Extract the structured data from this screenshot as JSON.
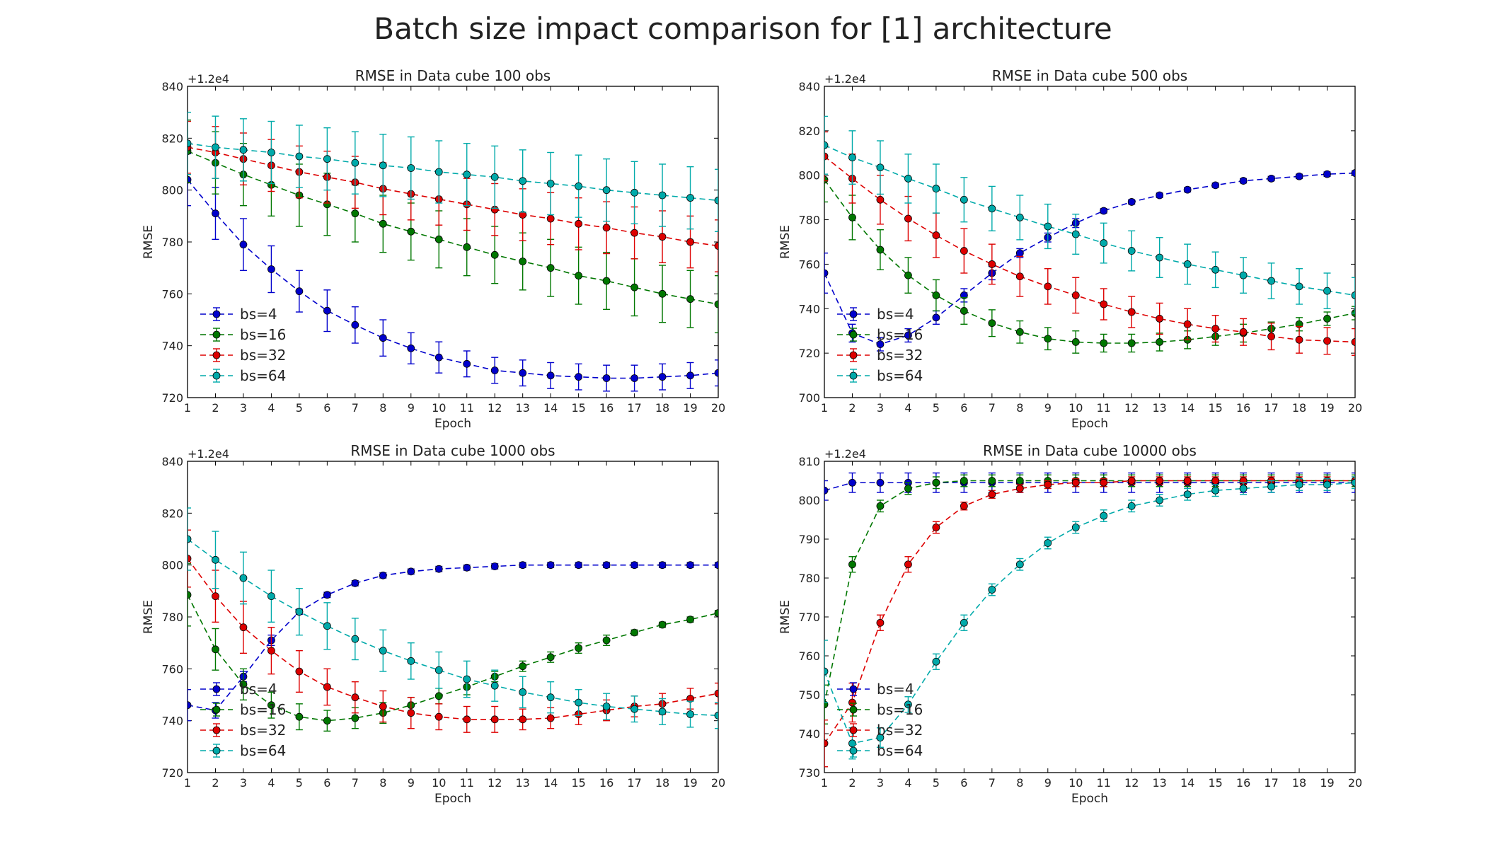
{
  "figure": {
    "title": "Batch size impact comparison for [1] architecture"
  },
  "chart_data": [
    {
      "type": "line",
      "title": "RMSE in Data cube 100 obs",
      "xlabel": "Epoch",
      "ylabel": "RMSE",
      "offset_text": "+1.2e4",
      "x": [
        1,
        2,
        3,
        4,
        5,
        6,
        7,
        8,
        9,
        10,
        11,
        12,
        13,
        14,
        15,
        16,
        17,
        18,
        19,
        20
      ],
      "xlim": [
        1,
        20
      ],
      "ylim": [
        720,
        840
      ],
      "yticks": [
        720,
        740,
        760,
        780,
        800,
        820,
        840
      ],
      "legend_position": "lower-left",
      "series": [
        {
          "name": "bs=4",
          "color": "#0000cc",
          "values": [
            804,
            791,
            779,
            769.5,
            761,
            753.5,
            748,
            743,
            739,
            735.5,
            733,
            730.5,
            729.5,
            728.5,
            728,
            727.5,
            727.5,
            728,
            728.5,
            729.5
          ],
          "errors": [
            10,
            10,
            10,
            9,
            8,
            8,
            7,
            7,
            6,
            6,
            5,
            5,
            5,
            5,
            5,
            5,
            5,
            5,
            5,
            5
          ]
        },
        {
          "name": "bs=16",
          "color": "#007700",
          "values": [
            815,
            810.5,
            806,
            802,
            798,
            794.5,
            791,
            787,
            784,
            781,
            778,
            775,
            772.5,
            770,
            767,
            765,
            762.5,
            760,
            758,
            756
          ],
          "errors": [
            12,
            12,
            12,
            12,
            12,
            12,
            11,
            11,
            11,
            11,
            11,
            11,
            11,
            11,
            11,
            11,
            11,
            11,
            11,
            11
          ]
        },
        {
          "name": "bs=32",
          "color": "#dd0000",
          "values": [
            816.5,
            814.5,
            812,
            809.5,
            807,
            805,
            803,
            800.5,
            798.5,
            796.5,
            794.5,
            792.5,
            790.5,
            789,
            787,
            785.5,
            783.5,
            782,
            780,
            778.5
          ],
          "errors": [
            10,
            10,
            10,
            10,
            10,
            10,
            10,
            10,
            10,
            10,
            10,
            10,
            10,
            10,
            10,
            10,
            10,
            10,
            10,
            10
          ]
        },
        {
          "name": "bs=64",
          "color": "#00aaaa",
          "values": [
            818,
            816.5,
            815.5,
            814.5,
            813,
            812,
            810.5,
            809.5,
            808.5,
            807,
            806,
            805,
            803.5,
            802.5,
            801.5,
            800,
            799,
            798,
            797,
            796
          ],
          "errors": [
            12,
            12,
            12,
            12,
            12,
            12,
            12,
            12,
            12,
            12,
            12,
            12,
            12,
            12,
            12,
            12,
            12,
            12,
            12,
            12
          ]
        }
      ]
    },
    {
      "type": "line",
      "title": "RMSE in Data cube 500 obs",
      "xlabel": "Epoch",
      "ylabel": "RMSE",
      "offset_text": "+1.2e4",
      "x": [
        1,
        2,
        3,
        4,
        5,
        6,
        7,
        8,
        9,
        10,
        11,
        12,
        13,
        14,
        15,
        16,
        17,
        18,
        19,
        20
      ],
      "xlim": [
        1,
        20
      ],
      "ylim": [
        700,
        840
      ],
      "yticks": [
        700,
        720,
        740,
        760,
        780,
        800,
        820,
        840
      ],
      "legend_position": "lower-left",
      "series": [
        {
          "name": "bs=4",
          "color": "#0000cc",
          "values": [
            756,
            729,
            724,
            728,
            736,
            746,
            756,
            765,
            772,
            778.5,
            784,
            788,
            791,
            793.5,
            795.5,
            797.5,
            798.5,
            799.5,
            800.5,
            801
          ],
          "errors": [
            9,
            4,
            3,
            3,
            3,
            3,
            3,
            2,
            2,
            2,
            1,
            1,
            1,
            1,
            1,
            1,
            1,
            1,
            1,
            1
          ]
        },
        {
          "name": "bs=16",
          "color": "#007700",
          "values": [
            798,
            781,
            766.5,
            755,
            746,
            739,
            733.5,
            729.5,
            726.5,
            725,
            724.5,
            724.5,
            725,
            726,
            727.5,
            729,
            731,
            733,
            735.5,
            738
          ],
          "errors": [
            10,
            10,
            9,
            8,
            7,
            6,
            6,
            5,
            5,
            5,
            4,
            4,
            4,
            4,
            4,
            4,
            3,
            3,
            3,
            3
          ]
        },
        {
          "name": "bs=32",
          "color": "#dd0000",
          "values": [
            808.5,
            798.5,
            789,
            780.5,
            773,
            766,
            760,
            754.5,
            750,
            746,
            742,
            738.5,
            735.5,
            733,
            731,
            729.5,
            727.5,
            726,
            725.5,
            725
          ],
          "errors": [
            11,
            11,
            11,
            10,
            10,
            10,
            9,
            9,
            8,
            8,
            7,
            7,
            7,
            7,
            6,
            6,
            6,
            6,
            6,
            6
          ]
        },
        {
          "name": "bs=64",
          "color": "#00aaaa",
          "values": [
            813.5,
            808,
            803.5,
            798.5,
            794,
            789,
            785,
            781,
            777,
            773.5,
            769.5,
            766,
            763,
            760,
            757.5,
            755,
            752.5,
            750,
            748,
            746
          ],
          "errors": [
            13,
            12,
            12,
            11,
            11,
            10,
            10,
            10,
            10,
            9,
            9,
            9,
            9,
            9,
            8,
            8,
            8,
            8,
            8,
            8
          ]
        }
      ]
    },
    {
      "type": "line",
      "title": "RMSE in Data cube 1000 obs",
      "xlabel": "Epoch",
      "ylabel": "RMSE",
      "offset_text": "+1.2e4",
      "x": [
        1,
        2,
        3,
        4,
        5,
        6,
        7,
        8,
        9,
        10,
        11,
        12,
        13,
        14,
        15,
        16,
        17,
        18,
        19,
        20
      ],
      "xlim": [
        1,
        20
      ],
      "ylim": [
        720,
        840
      ],
      "yticks": [
        720,
        740,
        760,
        780,
        800,
        820,
        840
      ],
      "legend_position": "lower-left",
      "series": [
        {
          "name": "bs=4",
          "color": "#0000cc",
          "values": [
            746,
            744,
            757,
            771,
            782,
            788.5,
            793,
            796,
            797.5,
            798.5,
            799,
            799.5,
            800,
            800,
            800,
            800,
            800,
            800,
            800,
            800
          ],
          "errors": [
            6,
            3,
            2,
            2,
            1,
            1,
            1,
            1,
            1,
            1,
            1,
            1,
            1,
            1,
            1,
            1,
            1,
            1,
            1,
            1
          ]
        },
        {
          "name": "bs=16",
          "color": "#007700",
          "values": [
            788.5,
            767.5,
            754,
            746,
            741.5,
            740,
            741,
            743,
            746,
            749.5,
            753,
            757,
            761,
            764.5,
            768,
            771,
            774,
            777,
            779,
            781.5
          ],
          "errors": [
            12,
            8,
            6,
            5,
            5,
            4,
            4,
            4,
            3,
            3,
            3,
            2,
            2,
            2,
            2,
            2,
            1,
            1,
            1,
            1
          ]
        },
        {
          "name": "bs=32",
          "color": "#dd0000",
          "values": [
            802.5,
            788,
            776,
            767,
            759,
            753,
            749,
            745.5,
            743,
            741.5,
            740.5,
            740.5,
            740.5,
            741,
            742.5,
            744,
            745.5,
            746.5,
            748.5,
            750.5
          ],
          "errors": [
            11,
            10,
            10,
            9,
            8,
            7,
            6,
            6,
            6,
            5,
            5,
            5,
            4,
            4,
            4,
            4,
            4,
            4,
            4,
            4
          ]
        },
        {
          "name": "bs=64",
          "color": "#00aaaa",
          "values": [
            810,
            802,
            795,
            788,
            782,
            776.5,
            771.5,
            767,
            763,
            759.5,
            756,
            753.5,
            751,
            749,
            747,
            745.5,
            744.5,
            743.5,
            742.5,
            742
          ],
          "errors": [
            12,
            11,
            10,
            10,
            9,
            9,
            8,
            8,
            7,
            7,
            7,
            6,
            6,
            6,
            5,
            5,
            5,
            5,
            5,
            5
          ]
        }
      ]
    },
    {
      "type": "line",
      "title": "RMSE in Data cube 10000 obs",
      "xlabel": "Epoch",
      "ylabel": "RMSE",
      "offset_text": "+1.2e4",
      "x": [
        1,
        2,
        3,
        4,
        5,
        6,
        7,
        8,
        9,
        10,
        11,
        12,
        13,
        14,
        15,
        16,
        17,
        18,
        19,
        20
      ],
      "xlim": [
        1,
        20
      ],
      "ylim": [
        730,
        810
      ],
      "yticks": [
        730,
        740,
        750,
        760,
        770,
        780,
        790,
        800,
        810
      ],
      "legend_position": "lower-left",
      "series": [
        {
          "name": "bs=4",
          "color": "#0000cc",
          "values": [
            802.5,
            804.5,
            804.5,
            804.5,
            804.5,
            804.5,
            804.5,
            804.5,
            804.5,
            804.5,
            804.5,
            804.5,
            804.5,
            804.5,
            804.5,
            804.5,
            804.5,
            804.5,
            804.5,
            804.5
          ],
          "errors": [
            2.5,
            2.5,
            2.5,
            2.5,
            2.5,
            2.5,
            2.5,
            2.5,
            2.5,
            2.5,
            2.5,
            2.5,
            2.5,
            2.5,
            2.5,
            2.5,
            2.5,
            2.5,
            2.5,
            2.5
          ]
        },
        {
          "name": "bs=16",
          "color": "#007700",
          "values": [
            747.5,
            783.5,
            798.5,
            803,
            804.5,
            805,
            805,
            805,
            805,
            805,
            805,
            805,
            805,
            805,
            805,
            805,
            805,
            805,
            805,
            805
          ],
          "errors": [
            5,
            2,
            1.5,
            1.5,
            1.5,
            1.5,
            1.5,
            1.5,
            1.5,
            1.5,
            1.5,
            1.5,
            1.5,
            1.5,
            1.5,
            1.5,
            1.5,
            1.5,
            1.5,
            1.5
          ]
        },
        {
          "name": "bs=32",
          "color": "#dd0000",
          "values": [
            737.5,
            748,
            768.5,
            783.5,
            793,
            798.5,
            801.5,
            803,
            804,
            804.5,
            804.5,
            805,
            805,
            805,
            805,
            805,
            805,
            805,
            805,
            805
          ],
          "errors": [
            6,
            5,
            2,
            2,
            1.5,
            1,
            1,
            1,
            1,
            1,
            1,
            1,
            1,
            1,
            1,
            1,
            1,
            1,
            1,
            1
          ]
        },
        {
          "name": "bs=64",
          "color": "#00aaaa",
          "values": [
            756,
            737.5,
            739,
            747.5,
            758.5,
            768.5,
            777,
            783.5,
            789,
            793,
            796,
            798.5,
            800,
            801.5,
            802.5,
            803,
            803.5,
            804,
            804,
            804.5
          ],
          "errors": [
            8,
            4,
            2.5,
            2,
            2,
            2,
            1.5,
            1.5,
            1.5,
            1.5,
            1.5,
            1.5,
            1.5,
            1.5,
            1.5,
            1.5,
            1.5,
            1.5,
            1.5,
            1.5
          ]
        }
      ]
    }
  ]
}
